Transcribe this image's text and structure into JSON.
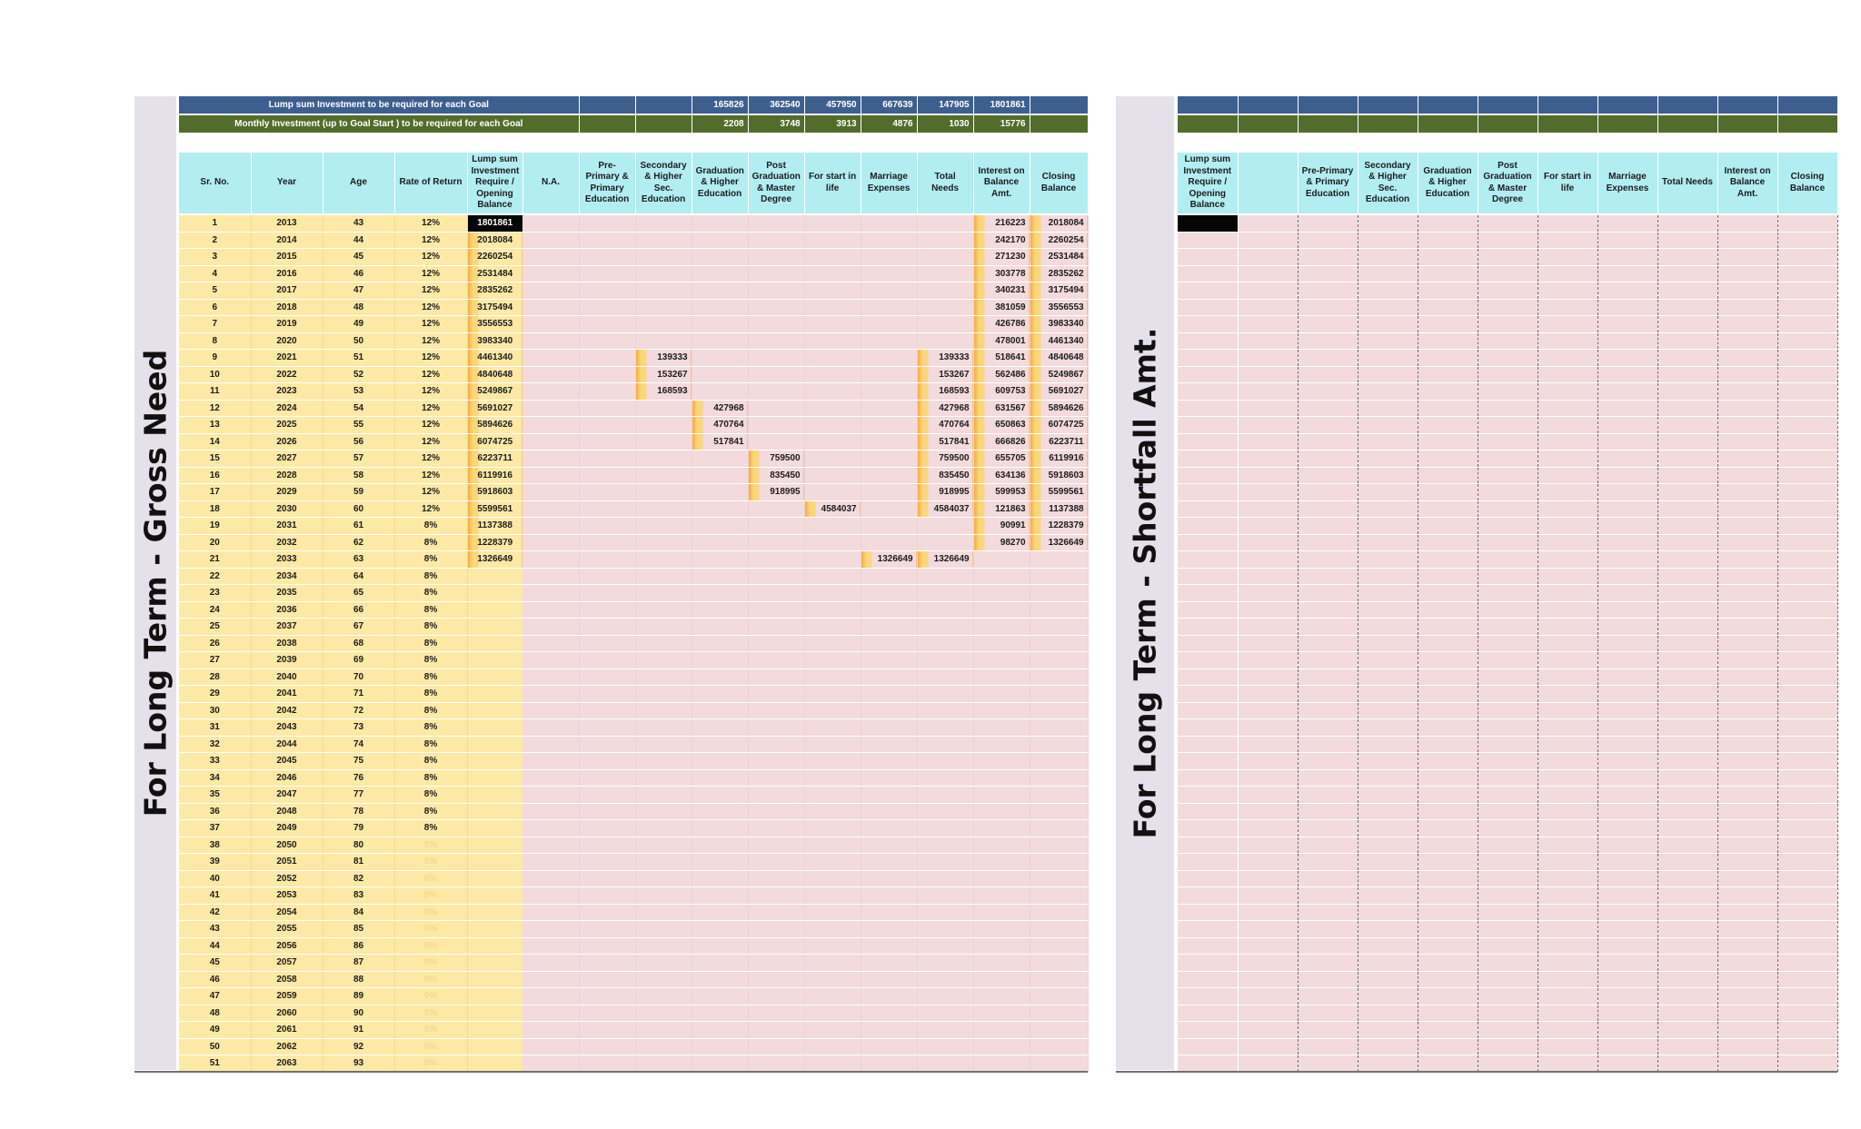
{
  "left_panel": {
    "title": "For Long Term - Gross Need",
    "banner_lump": {
      "label": "Lump sum Investment to be required for each Goal",
      "values": [
        "",
        "",
        "165826",
        "362540",
        "457950",
        "667639",
        "147905",
        "1801861",
        ""
      ]
    },
    "banner_monthly": {
      "label": "Monthly Investment (up to Goal Start ) to be required for each Goal",
      "values": [
        "",
        "",
        "2208",
        "3748",
        "3913",
        "4876",
        "1030",
        "15776",
        ""
      ]
    },
    "headers": [
      "Sr. No.",
      "Year",
      "Age",
      "Rate of Return",
      "Lump sum Investment Require / Opening Balance",
      "N.A.",
      "Pre-Primary & Primary Education",
      "Secondary & Higher Sec. Education",
      "Graduation & Higher Education",
      "Post Graduation & Master Degree",
      "For start in life",
      "Marriage Expenses",
      "Total Needs",
      "Interest on Balance Amt.",
      "Closing Balance"
    ],
    "rows": [
      [
        "1",
        "2013",
        "43",
        "12%",
        "1801861",
        "",
        "",
        "",
        "",
        "",
        "",
        "",
        "",
        "216223",
        "2018084"
      ],
      [
        "2",
        "2014",
        "44",
        "12%",
        "2018084",
        "",
        "",
        "",
        "",
        "",
        "",
        "",
        "",
        "242170",
        "2260254"
      ],
      [
        "3",
        "2015",
        "45",
        "12%",
        "2260254",
        "",
        "",
        "",
        "",
        "",
        "",
        "",
        "",
        "271230",
        "2531484"
      ],
      [
        "4",
        "2016",
        "46",
        "12%",
        "2531484",
        "",
        "",
        "",
        "",
        "",
        "",
        "",
        "",
        "303778",
        "2835262"
      ],
      [
        "5",
        "2017",
        "47",
        "12%",
        "2835262",
        "",
        "",
        "",
        "",
        "",
        "",
        "",
        "",
        "340231",
        "3175494"
      ],
      [
        "6",
        "2018",
        "48",
        "12%",
        "3175494",
        "",
        "",
        "",
        "",
        "",
        "",
        "",
        "",
        "381059",
        "3556553"
      ],
      [
        "7",
        "2019",
        "49",
        "12%",
        "3556553",
        "",
        "",
        "",
        "",
        "",
        "",
        "",
        "",
        "426786",
        "3983340"
      ],
      [
        "8",
        "2020",
        "50",
        "12%",
        "3983340",
        "",
        "",
        "",
        "",
        "",
        "",
        "",
        "",
        "478001",
        "4461340"
      ],
      [
        "9",
        "2021",
        "51",
        "12%",
        "4461340",
        "",
        "",
        "139333",
        "",
        "",
        "",
        "",
        "139333",
        "518641",
        "4840648"
      ],
      [
        "10",
        "2022",
        "52",
        "12%",
        "4840648",
        "",
        "",
        "153267",
        "",
        "",
        "",
        "",
        "153267",
        "562486",
        "5249867"
      ],
      [
        "11",
        "2023",
        "53",
        "12%",
        "5249867",
        "",
        "",
        "168593",
        "",
        "",
        "",
        "",
        "168593",
        "609753",
        "5691027"
      ],
      [
        "12",
        "2024",
        "54",
        "12%",
        "5691027",
        "",
        "",
        "",
        "427968",
        "",
        "",
        "",
        "427968",
        "631567",
        "5894626"
      ],
      [
        "13",
        "2025",
        "55",
        "12%",
        "5894626",
        "",
        "",
        "",
        "470764",
        "",
        "",
        "",
        "470764",
        "650863",
        "6074725"
      ],
      [
        "14",
        "2026",
        "56",
        "12%",
        "6074725",
        "",
        "",
        "",
        "517841",
        "",
        "",
        "",
        "517841",
        "666826",
        "6223711"
      ],
      [
        "15",
        "2027",
        "57",
        "12%",
        "6223711",
        "",
        "",
        "",
        "",
        "759500",
        "",
        "",
        "759500",
        "655705",
        "6119916"
      ],
      [
        "16",
        "2028",
        "58",
        "12%",
        "6119916",
        "",
        "",
        "",
        "",
        "835450",
        "",
        "",
        "835450",
        "634136",
        "5918603"
      ],
      [
        "17",
        "2029",
        "59",
        "12%",
        "5918603",
        "",
        "",
        "",
        "",
        "918995",
        "",
        "",
        "918995",
        "599953",
        "5599561"
      ],
      [
        "18",
        "2030",
        "60",
        "12%",
        "5599561",
        "",
        "",
        "",
        "",
        "",
        "4584037",
        "",
        "4584037",
        "121863",
        "1137388"
      ],
      [
        "19",
        "2031",
        "61",
        "8%",
        "1137388",
        "",
        "",
        "",
        "",
        "",
        "",
        "",
        "",
        "90991",
        "1228379"
      ],
      [
        "20",
        "2032",
        "62",
        "8%",
        "1228379",
        "",
        "",
        "",
        "",
        "",
        "",
        "",
        "",
        "98270",
        "1326649"
      ],
      [
        "21",
        "2033",
        "63",
        "8%",
        "1326649",
        "",
        "",
        "",
        "",
        "",
        "",
        "1326649",
        "1326649",
        "",
        ""
      ],
      [
        "22",
        "2034",
        "64",
        "8%",
        "",
        "",
        "",
        "",
        "",
        "",
        "",
        "",
        "",
        "",
        ""
      ],
      [
        "23",
        "2035",
        "65",
        "8%",
        "",
        "",
        "",
        "",
        "",
        "",
        "",
        "",
        "",
        "",
        ""
      ],
      [
        "24",
        "2036",
        "66",
        "8%",
        "",
        "",
        "",
        "",
        "",
        "",
        "",
        "",
        "",
        "",
        ""
      ],
      [
        "25",
        "2037",
        "67",
        "8%",
        "",
        "",
        "",
        "",
        "",
        "",
        "",
        "",
        "",
        "",
        ""
      ],
      [
        "26",
        "2038",
        "68",
        "8%",
        "",
        "",
        "",
        "",
        "",
        "",
        "",
        "",
        "",
        "",
        ""
      ],
      [
        "27",
        "2039",
        "69",
        "8%",
        "",
        "",
        "",
        "",
        "",
        "",
        "",
        "",
        "",
        "",
        ""
      ],
      [
        "28",
        "2040",
        "70",
        "8%",
        "",
        "",
        "",
        "",
        "",
        "",
        "",
        "",
        "",
        "",
        ""
      ],
      [
        "29",
        "2041",
        "71",
        "8%",
        "",
        "",
        "",
        "",
        "",
        "",
        "",
        "",
        "",
        "",
        ""
      ],
      [
        "30",
        "2042",
        "72",
        "8%",
        "",
        "",
        "",
        "",
        "",
        "",
        "",
        "",
        "",
        "",
        ""
      ],
      [
        "31",
        "2043",
        "73",
        "8%",
        "",
        "",
        "",
        "",
        "",
        "",
        "",
        "",
        "",
        "",
        ""
      ],
      [
        "32",
        "2044",
        "74",
        "8%",
        "",
        "",
        "",
        "",
        "",
        "",
        "",
        "",
        "",
        "",
        ""
      ],
      [
        "33",
        "2045",
        "75",
        "8%",
        "",
        "",
        "",
        "",
        "",
        "",
        "",
        "",
        "",
        "",
        ""
      ],
      [
        "34",
        "2046",
        "76",
        "8%",
        "",
        "",
        "",
        "",
        "",
        "",
        "",
        "",
        "",
        "",
        ""
      ],
      [
        "35",
        "2047",
        "77",
        "8%",
        "",
        "",
        "",
        "",
        "",
        "",
        "",
        "",
        "",
        "",
        ""
      ],
      [
        "36",
        "2048",
        "78",
        "8%",
        "",
        "",
        "",
        "",
        "",
        "",
        "",
        "",
        "",
        "",
        ""
      ],
      [
        "37",
        "2049",
        "79",
        "8%",
        "",
        "",
        "",
        "",
        "",
        "",
        "",
        "",
        "",
        "",
        ""
      ],
      [
        "38",
        "2050",
        "80",
        "0%",
        "",
        "",
        "",
        "",
        "",
        "",
        "",
        "",
        "",
        "",
        ""
      ],
      [
        "39",
        "2051",
        "81",
        "0%",
        "",
        "",
        "",
        "",
        "",
        "",
        "",
        "",
        "",
        "",
        ""
      ],
      [
        "40",
        "2052",
        "82",
        "0%",
        "",
        "",
        "",
        "",
        "",
        "",
        "",
        "",
        "",
        "",
        ""
      ],
      [
        "41",
        "2053",
        "83",
        "0%",
        "",
        "",
        "",
        "",
        "",
        "",
        "",
        "",
        "",
        "",
        ""
      ],
      [
        "42",
        "2054",
        "84",
        "0%",
        "",
        "",
        "",
        "",
        "",
        "",
        "",
        "",
        "",
        "",
        ""
      ],
      [
        "43",
        "2055",
        "85",
        "0%",
        "",
        "",
        "",
        "",
        "",
        "",
        "",
        "",
        "",
        "",
        ""
      ],
      [
        "44",
        "2056",
        "86",
        "0%",
        "",
        "",
        "",
        "",
        "",
        "",
        "",
        "",
        "",
        "",
        ""
      ],
      [
        "45",
        "2057",
        "87",
        "0%",
        "",
        "",
        "",
        "",
        "",
        "",
        "",
        "",
        "",
        "",
        ""
      ],
      [
        "46",
        "2058",
        "88",
        "0%",
        "",
        "",
        "",
        "",
        "",
        "",
        "",
        "",
        "",
        "",
        ""
      ],
      [
        "47",
        "2059",
        "89",
        "0%",
        "",
        "",
        "",
        "",
        "",
        "",
        "",
        "",
        "",
        "",
        ""
      ],
      [
        "48",
        "2060",
        "90",
        "0%",
        "",
        "",
        "",
        "",
        "",
        "",
        "",
        "",
        "",
        "",
        ""
      ],
      [
        "49",
        "2061",
        "91",
        "0%",
        "",
        "",
        "",
        "",
        "",
        "",
        "",
        "",
        "",
        "",
        ""
      ],
      [
        "50",
        "2062",
        "92",
        "0%",
        "",
        "",
        "",
        "",
        "",
        "",
        "",
        "",
        "",
        "",
        ""
      ],
      [
        "51",
        "2063",
        "93",
        "0%",
        "",
        "",
        "",
        "",
        "",
        "",
        "",
        "",
        "",
        "",
        ""
      ]
    ]
  },
  "right_panel": {
    "title": "For Long Term - Shortfall Amt.",
    "headers": [
      "Lump sum Investment Require / Opening Balance",
      "",
      "Pre-Primary & Primary Education",
      "Secondary & Higher Sec. Education",
      "Graduation & Higher Education",
      "Post Graduation & Master Degree",
      "For start in life",
      "Marriage Expenses",
      "Total Needs",
      "Interest on Balance Amt.",
      "Closing Balance"
    ]
  },
  "colors": {
    "lump_banner": "#3d5f8f",
    "monthly_banner": "#526c2c",
    "header_bg": "#b2edf2",
    "yellow_cells": "#fde9a6",
    "pink_cells": "#f2dadd",
    "databar": "#f4a93a",
    "side_band": "#e4e1ea"
  }
}
